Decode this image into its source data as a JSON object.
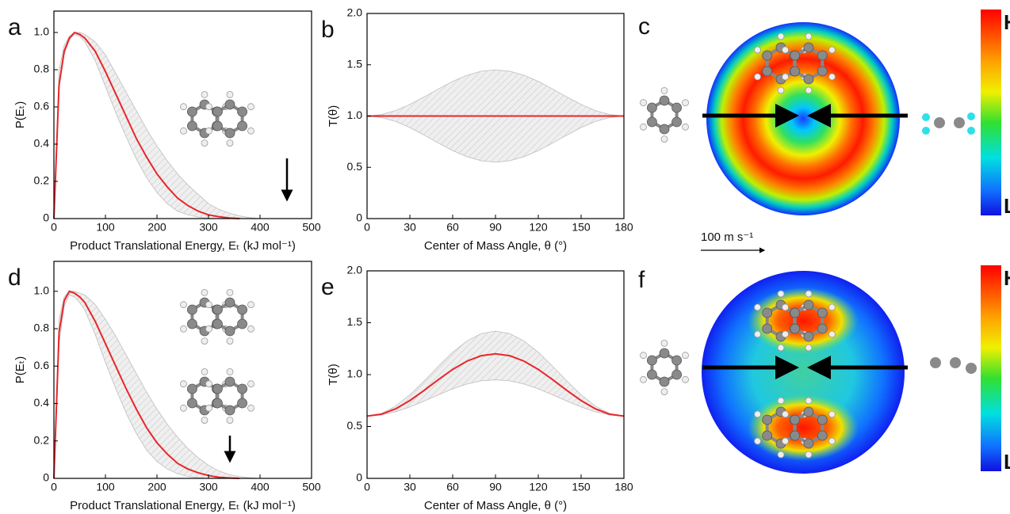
{
  "chart_data": [
    {
      "type": "line",
      "panel_label": "a",
      "xlabel": "Product Translational Energy, Eₜ (kJ mol⁻¹)",
      "ylabel": "P(Eₜ)",
      "xlim": [
        0,
        500
      ],
      "ylim": [
        0,
        1.115
      ],
      "xticks": [
        0,
        100,
        200,
        300,
        400,
        500
      ],
      "yticks": [
        0,
        0.2,
        0.4,
        0.6,
        0.8,
        {
          "value": 1,
          "label": "1.0"
        }
      ],
      "x": [
        0,
        10,
        20,
        30,
        40,
        50,
        60,
        80,
        100,
        120,
        140,
        160,
        180,
        200,
        220,
        240,
        260,
        280,
        300,
        320,
        340,
        360,
        380,
        400
      ],
      "series": [
        {
          "color": "#e8262a",
          "values": [
            0,
            0.72,
            0.9,
            0.97,
            1.0,
            0.99,
            0.97,
            0.9,
            0.79,
            0.67,
            0.55,
            0.43,
            0.33,
            0.24,
            0.17,
            0.11,
            0.07,
            0.04,
            0.02,
            0.01,
            0.003,
            0,
            null,
            null
          ]
        }
      ],
      "band": {
        "color": "#bdbdbd",
        "upper": [
          0,
          0.8,
          0.93,
          0.98,
          1.0,
          1.0,
          0.99,
          0.95,
          0.88,
          0.78,
          0.68,
          0.58,
          0.48,
          0.39,
          0.31,
          0.24,
          0.18,
          0.13,
          0.08,
          0.05,
          0.03,
          0.015,
          0.005,
          0
        ],
        "lower": [
          0,
          0.7,
          0.88,
          0.96,
          0.99,
          0.98,
          0.95,
          0.85,
          0.71,
          0.57,
          0.44,
          0.32,
          0.22,
          0.14,
          0.08,
          0.04,
          0.02,
          0.008,
          0.002,
          0,
          0,
          0,
          0,
          0
        ]
      }
    },
    {
      "type": "line",
      "panel_label": "b",
      "xlabel": "Center of Mass Angle, θ (°)",
      "ylabel": "T(θ)",
      "xlim": [
        0,
        180
      ],
      "ylim": [
        0,
        2
      ],
      "xticks": [
        0,
        30,
        60,
        90,
        120,
        150,
        180
      ],
      "yticks": [
        0,
        0.5,
        {
          "value": 1,
          "label": "1.0"
        },
        1.5,
        {
          "value": 2,
          "label": "2.0"
        }
      ],
      "x": [
        0,
        10,
        20,
        30,
        40,
        50,
        60,
        70,
        80,
        90,
        100,
        110,
        120,
        130,
        140,
        150,
        160,
        170,
        180
      ],
      "series": [
        {
          "color": "#e8262a",
          "values": [
            1,
            1,
            1,
            1,
            1,
            1,
            1,
            1,
            1,
            1,
            1,
            1,
            1,
            1,
            1,
            1,
            1,
            1,
            1
          ]
        }
      ],
      "band": {
        "color": "#bdbdbd",
        "upper": [
          1,
          1.014,
          1.053,
          1.113,
          1.186,
          1.264,
          1.338,
          1.397,
          1.437,
          1.45,
          1.437,
          1.397,
          1.338,
          1.264,
          1.186,
          1.113,
          1.053,
          1.014,
          1
        ],
        "lower": [
          1,
          0.986,
          0.947,
          0.888,
          0.814,
          0.736,
          0.663,
          0.603,
          0.564,
          0.55,
          0.564,
          0.603,
          0.663,
          0.736,
          0.814,
          0.888,
          0.947,
          0.986,
          1
        ]
      }
    },
    {
      "type": "line",
      "panel_label": "d",
      "xlabel": "Product Translational Energy, Eₜ (kJ mol⁻¹)",
      "ylabel": "P(Eₜ)",
      "xlim": [
        0,
        500
      ],
      "ylim": [
        0,
        1.16
      ],
      "xticks": [
        0,
        100,
        200,
        300,
        400,
        500
      ],
      "yticks": [
        0,
        0.2,
        0.4,
        0.6,
        0.8,
        {
          "value": 1,
          "label": "1.0"
        }
      ],
      "x": [
        0,
        10,
        20,
        30,
        40,
        50,
        60,
        80,
        100,
        120,
        140,
        160,
        180,
        200,
        220,
        240,
        260,
        280,
        300,
        320,
        340,
        360,
        380,
        400
      ],
      "series": [
        {
          "color": "#e8262a",
          "values": [
            0,
            0.78,
            0.95,
            1.0,
            0.99,
            0.97,
            0.94,
            0.84,
            0.72,
            0.6,
            0.48,
            0.37,
            0.27,
            0.19,
            0.13,
            0.08,
            0.05,
            0.03,
            0.015,
            0.006,
            0.002,
            0,
            null,
            null
          ]
        }
      ],
      "band": {
        "color": "#bdbdbd",
        "upper": [
          0,
          0.85,
          0.97,
          1.0,
          1.0,
          0.99,
          0.98,
          0.93,
          0.85,
          0.76,
          0.66,
          0.56,
          0.46,
          0.37,
          0.29,
          0.22,
          0.16,
          0.11,
          0.07,
          0.04,
          0.02,
          0.01,
          0.003,
          0
        ],
        "lower": [
          0,
          0.72,
          0.92,
          0.98,
          0.97,
          0.94,
          0.9,
          0.77,
          0.62,
          0.48,
          0.35,
          0.24,
          0.15,
          0.09,
          0.05,
          0.025,
          0.01,
          0.004,
          0,
          0,
          0,
          0,
          0,
          0
        ]
      }
    },
    {
      "type": "line",
      "panel_label": "e",
      "xlabel": "Center of Mass Angle, θ (°)",
      "ylabel": "T(θ)",
      "xlim": [
        0,
        180
      ],
      "ylim": [
        0,
        2
      ],
      "xticks": [
        0,
        30,
        60,
        90,
        120,
        150,
        180
      ],
      "yticks": [
        0,
        0.5,
        {
          "value": 1,
          "label": "1.0"
        },
        1.5,
        {
          "value": 2,
          "label": "2.0"
        }
      ],
      "x": [
        0,
        10,
        20,
        30,
        40,
        50,
        60,
        70,
        80,
        90,
        100,
        110,
        120,
        130,
        140,
        150,
        160,
        170,
        180
      ],
      "series": [
        {
          "color": "#e8262a",
          "values": [
            0.6,
            0.618,
            0.67,
            0.75,
            0.848,
            0.952,
            1.05,
            1.13,
            1.182,
            1.2,
            1.182,
            1.13,
            1.05,
            0.952,
            0.848,
            0.75,
            0.67,
            0.618,
            0.6
          ]
        }
      ],
      "band": {
        "color": "#bdbdbd",
        "upper": [
          0.6,
          0.625,
          0.696,
          0.805,
          0.939,
          1.081,
          1.215,
          1.324,
          1.395,
          1.42,
          1.395,
          1.324,
          1.215,
          1.081,
          0.939,
          0.805,
          0.696,
          0.625,
          0.6
        ],
        "lower": [
          0.6,
          0.611,
          0.641,
          0.688,
          0.745,
          0.805,
          0.863,
          0.909,
          0.94,
          0.95,
          0.94,
          0.909,
          0.863,
          0.805,
          0.745,
          0.688,
          0.641,
          0.611,
          0.6
        ]
      }
    }
  ],
  "flux_maps": [
    {
      "panel_label": "c",
      "high_label": "H",
      "low_label": "L"
    },
    {
      "panel_label": "f",
      "high_label": "H",
      "low_label": "L"
    }
  ],
  "scale_bar_label": "100 m s⁻¹"
}
